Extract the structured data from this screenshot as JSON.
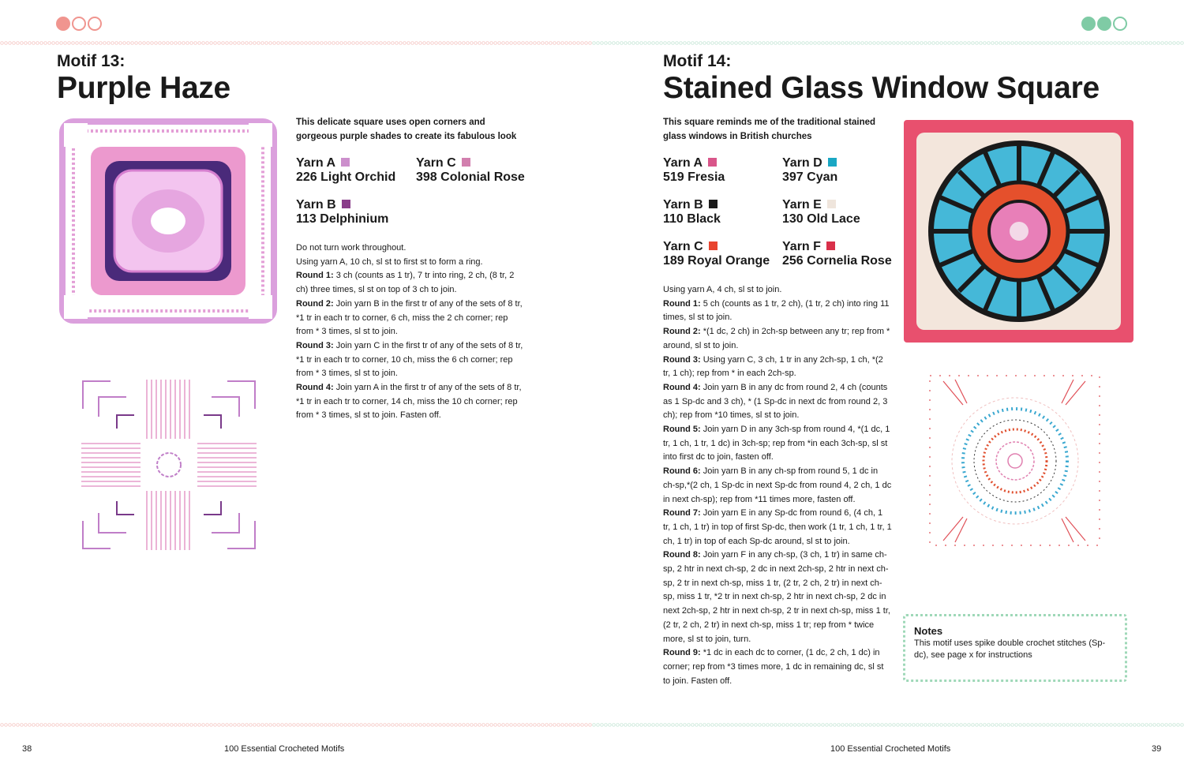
{
  "colors": {
    "left_accent": "#f0958f",
    "right_accent": "#7fcba5"
  },
  "left": {
    "motif_number": "Motif 13:",
    "title": "Purple Haze",
    "intro": "This delicate square uses open corners and gorgeous purple shades to create its fabulous look",
    "yarns": [
      {
        "label": "Yarn A",
        "name": "226 Light Orchid",
        "color": "#cc8fcc"
      },
      {
        "label": "Yarn C",
        "name": "398 Colonial Rose",
        "color": "#d27fae"
      },
      {
        "label": "Yarn B",
        "name": "113 Delphinium",
        "color": "#8a3d8a"
      }
    ],
    "instructions": [
      {
        "bold": "",
        "text": "Do not turn work throughout."
      },
      {
        "bold": "",
        "text": "Using yarn A, 10 ch, sl st to first st to form a ring."
      },
      {
        "bold": "Round 1:",
        "text": " 3 ch (counts as 1 tr), 7 tr into ring, 2 ch, (8 tr, 2 ch) three times, sl st on top of 3 ch to join."
      },
      {
        "bold": "Round 2:",
        "text": " Join yarn B in the first tr of any of the sets of 8 tr, *1 tr in each tr to corner, 6 ch, miss the 2 ch corner; rep from * 3 times, sl st to join."
      },
      {
        "bold": "Round 3:",
        "text": " Join yarn C in the first tr of any of the sets of 8 tr, *1 tr in each tr to corner, 10 ch, miss the 6 ch corner; rep from * 3 times, sl st to join."
      },
      {
        "bold": "Round 4:",
        "text": " Join yarn A in the first tr of any of the sets of 8 tr, *1 tr in each tr to corner, 14 ch, miss the 10 ch corner; rep from * 3 times, sl st to join. Fasten off."
      }
    ],
    "page_number": "38",
    "footer_title": "100 Essential Crocheted Motifs"
  },
  "right": {
    "motif_number": "Motif 14:",
    "title": "Stained Glass Window Square",
    "intro": "This square reminds me of the traditional stained glass windows in British churches",
    "yarns": [
      {
        "label": "Yarn A",
        "name": "519 Fresia",
        "color": "#d9568a"
      },
      {
        "label": "Yarn D",
        "name": "397 Cyan",
        "color": "#1aa7c4"
      },
      {
        "label": "Yarn B",
        "name": "110 Black",
        "color": "#1a1a1a"
      },
      {
        "label": "Yarn E",
        "name": "130 Old Lace",
        "color": "#efe5dc"
      },
      {
        "label": "Yarn C",
        "name": "189 Royal Orange",
        "color": "#e8442e"
      },
      {
        "label": "Yarn F",
        "name": "256 Cornelia Rose",
        "color": "#d9304a"
      }
    ],
    "instructions": [
      {
        "bold": "",
        "text": "Using yarn A, 4 ch, sl st to join."
      },
      {
        "bold": "Round 1:",
        "text": " 5 ch (counts as 1 tr, 2 ch), (1 tr, 2 ch) into ring 11 times, sl st to join."
      },
      {
        "bold": "Round 2:",
        "text": " *(1 dc, 2 ch) in 2ch-sp between any tr; rep from * around, sl st to join."
      },
      {
        "bold": "Round 3:",
        "text": " Using yarn C, 3 ch, 1 tr in any 2ch-sp, 1 ch, *(2 tr, 1 ch); rep from * in each 2ch-sp."
      },
      {
        "bold": "Round 4:",
        "text": " Join yarn B in any dc from round 2, 4 ch (counts as 1 Sp-dc and 3 ch), * (1 Sp-dc in next dc from round 2, 3 ch); rep from *10 times, sl st to join."
      },
      {
        "bold": "Round 5:",
        "text": " Join yarn D in any 3ch-sp  from round 4, *(1 dc, 1 tr, 1 ch, 1 tr, 1 dc) in 3ch-sp; rep from *in each 3ch-sp, sl st into first dc to join, fasten off."
      },
      {
        "bold": "Round 6:",
        "text": " Join yarn B in any ch-sp from round 5, 1 dc in ch-sp,*(2 ch, 1 Sp-dc in next Sp-dc from round 4, 2 ch, 1 dc in next ch-sp); rep from *11 times more, fasten off."
      },
      {
        "bold": "Round 7:",
        "text": " Join yarn E in any Sp-dc from round 6, (4 ch, 1 tr, 1 ch, 1 tr) in top of first Sp-dc, then work (1 tr, 1 ch, 1 tr, 1 ch, 1 tr) in top of each Sp-dc around, sl st to join."
      },
      {
        "bold": "Round 8:",
        "text": " Join yarn F in any ch-sp, (3 ch, 1 tr) in same ch-sp, 2 htr in next ch-sp, 2 dc in next 2ch-sp, 2 htr in next ch-sp, 2 tr in next ch-sp, miss 1 tr, (2 tr, 2 ch, 2 tr) in next ch-sp, miss 1 tr, *2 tr in next ch-sp, 2 htr in next ch-sp, 2 dc in next 2ch-sp, 2 htr in next ch-sp, 2 tr in next ch-sp, miss 1 tr, (2 tr, 2 ch, 2 tr) in next ch-sp, miss 1 tr; rep from * twice more, sl st to join, turn."
      },
      {
        "bold": "Round 9:",
        "text": " *1 dc in each dc to corner, (1 dc, 2 ch, 1 dc) in corner; rep from *3 times more, 1 dc in remaining dc, sl st to join. Fasten off."
      }
    ],
    "notes": {
      "heading": "Notes",
      "text": "This motif uses spike double crochet stitches (Sp-dc), see page x for instructions"
    },
    "page_number": "39",
    "footer_title": "100 Essential Crocheted Motifs"
  }
}
